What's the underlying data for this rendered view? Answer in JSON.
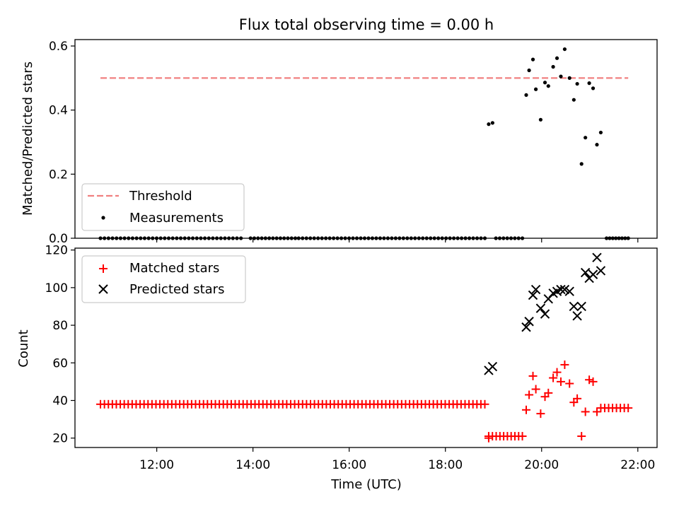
{
  "chart_data": [
    {
      "type": "scatter",
      "title": "Flux total observing time = 0.00 h",
      "xlabel": "",
      "ylabel": "Matched/Predicted stars",
      "xlim": [
        10.3,
        22.4
      ],
      "ylim": [
        0.0,
        0.62
      ],
      "yticks": [
        0.0,
        0.2,
        0.4,
        0.6
      ],
      "ytick_labels": [
        "0.0",
        "0.2",
        "0.4",
        "0.6"
      ],
      "xticks": [
        12,
        14,
        16,
        18,
        20,
        22
      ],
      "grid": false,
      "legend": {
        "placement": "lower-left",
        "entries": [
          "Threshold",
          "Measurements"
        ]
      },
      "threshold": {
        "name": "Threshold",
        "y": 0.5,
        "x_range": [
          10.83,
          21.8
        ],
        "color": "#f08080",
        "style": "dashed"
      },
      "series": [
        {
          "name": "Measurements",
          "color": "#000000",
          "marker": "dot",
          "zero_groups": [
            {
              "start": 10.83,
              "end": 13.75,
              "count": 36
            },
            {
              "start": 13.95,
              "end": 14.88,
              "count": 13
            },
            {
              "start": 14.95,
              "end": 18.82,
              "count": 49
            },
            {
              "start": 19.05,
              "end": 19.6,
              "count": 8
            },
            {
              "start": 21.35,
              "end": 21.8,
              "count": 8
            }
          ],
          "points": [
            [
              18.9,
              0.356
            ],
            [
              18.98,
              0.36
            ],
            [
              19.68,
              0.447
            ],
            [
              19.74,
              0.524
            ],
            [
              19.82,
              0.558
            ],
            [
              19.88,
              0.465
            ],
            [
              19.98,
              0.37
            ],
            [
              20.07,
              0.486
            ],
            [
              20.14,
              0.475
            ],
            [
              20.24,
              0.535
            ],
            [
              20.32,
              0.562
            ],
            [
              20.4,
              0.505
            ],
            [
              20.48,
              0.59
            ],
            [
              20.58,
              0.5
            ],
            [
              20.67,
              0.432
            ],
            [
              20.74,
              0.482
            ],
            [
              20.83,
              0.232
            ],
            [
              20.91,
              0.314
            ],
            [
              20.99,
              0.484
            ],
            [
              21.07,
              0.468
            ],
            [
              21.15,
              0.292
            ],
            [
              21.23,
              0.33
            ]
          ]
        }
      ]
    },
    {
      "type": "scatter",
      "title": "",
      "xlabel": "Time (UTC)",
      "ylabel": "Count",
      "xlim": [
        10.3,
        22.4
      ],
      "ylim": [
        15,
        121
      ],
      "yticks": [
        20,
        40,
        60,
        80,
        100,
        120
      ],
      "ytick_labels": [
        "20",
        "40",
        "60",
        "80",
        "100",
        "120"
      ],
      "xticks": [
        12,
        14,
        16,
        18,
        20,
        22
      ],
      "xtick_labels": [
        "12:00",
        "14:00",
        "16:00",
        "18:00",
        "20:00",
        "22:00"
      ],
      "grid": false,
      "legend": {
        "placement": "top-left",
        "entries": [
          "Matched stars",
          "Predicted stars"
        ]
      },
      "series": [
        {
          "name": "Matched stars",
          "color": "#ff0000",
          "marker": "plus",
          "constant_groups": [
            {
              "start": 10.83,
              "end": 18.82,
              "count": 98,
              "y": 38
            },
            {
              "start": 18.9,
              "end": 19.6,
              "count": 10,
              "y": 21
            },
            {
              "start": 21.23,
              "end": 21.8,
              "count": 8,
              "y": 36
            }
          ],
          "points": [
            [
              18.9,
              20
            ],
            [
              19.68,
              35
            ],
            [
              19.74,
              43
            ],
            [
              19.82,
              53
            ],
            [
              19.88,
              46
            ],
            [
              19.98,
              33
            ],
            [
              20.07,
              42
            ],
            [
              20.14,
              44
            ],
            [
              20.24,
              52
            ],
            [
              20.32,
              55
            ],
            [
              20.4,
              50
            ],
            [
              20.48,
              59
            ],
            [
              20.58,
              49
            ],
            [
              20.67,
              39
            ],
            [
              20.74,
              41
            ],
            [
              20.83,
              21
            ],
            [
              20.91,
              34
            ],
            [
              20.99,
              51
            ],
            [
              21.07,
              50
            ],
            [
              21.15,
              34
            ]
          ]
        },
        {
          "name": "Predicted stars",
          "color": "#000000",
          "marker": "x",
          "points": [
            [
              18.9,
              56
            ],
            [
              18.98,
              58
            ],
            [
              19.68,
              79
            ],
            [
              19.74,
              82
            ],
            [
              19.82,
              96
            ],
            [
              19.88,
              99
            ],
            [
              19.98,
              89
            ],
            [
              20.07,
              86
            ],
            [
              20.14,
              94
            ],
            [
              20.24,
              97
            ],
            [
              20.32,
              98
            ],
            [
              20.4,
              99
            ],
            [
              20.48,
              99
            ],
            [
              20.58,
              98
            ],
            [
              20.67,
              90
            ],
            [
              20.74,
              85
            ],
            [
              20.83,
              90
            ],
            [
              20.91,
              108
            ],
            [
              20.99,
              105
            ],
            [
              21.07,
              107
            ],
            [
              21.15,
              116
            ],
            [
              21.23,
              109
            ]
          ]
        }
      ]
    }
  ]
}
